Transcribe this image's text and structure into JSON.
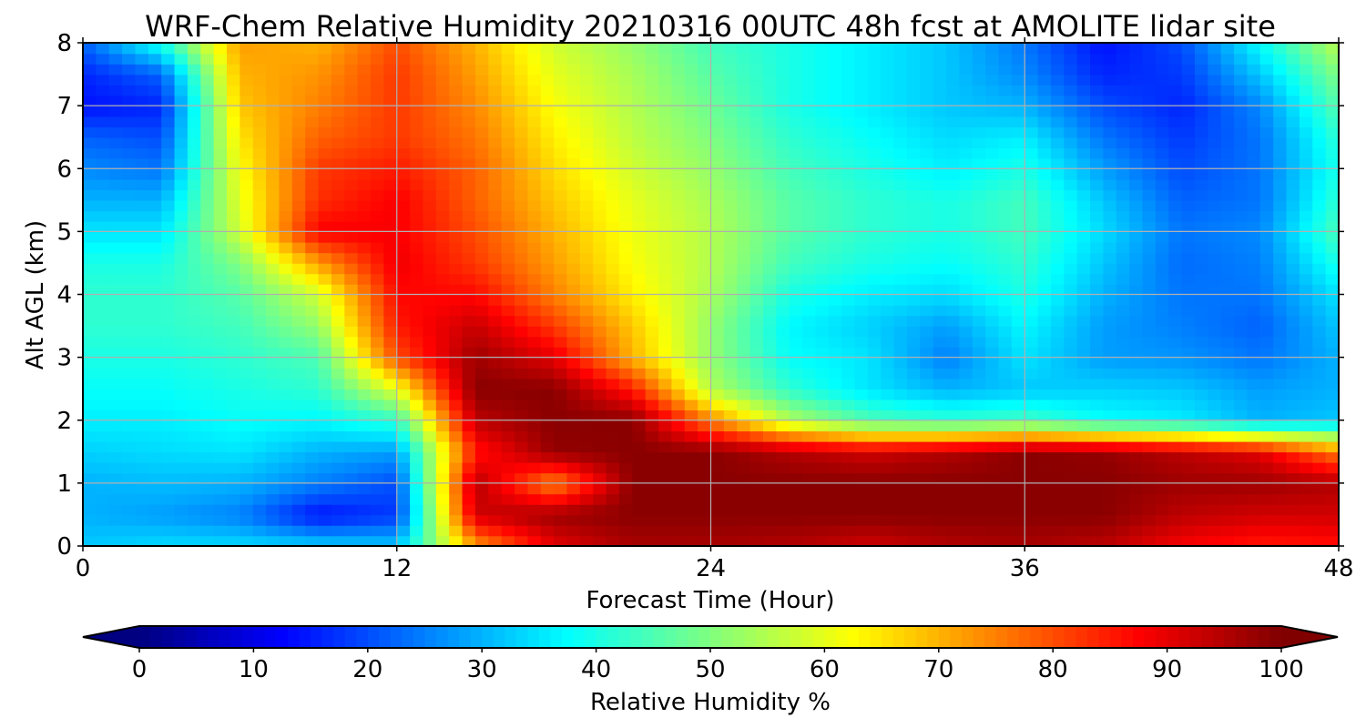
{
  "chart_data": {
    "type": "heatmap",
    "title": "WRF-Chem Relative Humidity 20210316 00UTC 48h fcst at AMOLITE lidar site",
    "xlabel": "Forecast Time (Hour)",
    "ylabel": "Alt AGL (km)",
    "xlim": [
      0,
      48
    ],
    "ylim": [
      0,
      8
    ],
    "xticks": [
      0,
      12,
      24,
      36,
      48
    ],
    "yticks": [
      0,
      1,
      2,
      3,
      4,
      5,
      6,
      7,
      8
    ],
    "grid": true,
    "colormap": "jet",
    "colorbar": {
      "label": "Relative Humidity %",
      "range": [
        0,
        100
      ],
      "ticks": [
        0,
        10,
        20,
        30,
        40,
        50,
        60,
        70,
        80,
        90,
        100
      ],
      "extend": "both",
      "orientation": "horizontal"
    },
    "x": [
      0,
      3,
      6,
      9,
      12,
      15,
      18,
      21,
      24,
      27,
      30,
      33,
      36,
      39,
      42,
      45,
      48
    ],
    "y": [
      0,
      0.5,
      1,
      1.5,
      2,
      2.5,
      3,
      3.5,
      4,
      4.5,
      5,
      5.5,
      6,
      6.5,
      7,
      7.5,
      8
    ],
    "z": [
      [
        32,
        34,
        34,
        33,
        32,
        72,
        90,
        96,
        96,
        95,
        92,
        95,
        96,
        94,
        88,
        85,
        86
      ],
      [
        30,
        28,
        25,
        14,
        18,
        92,
        97,
        99,
        99,
        99,
        99,
        99,
        99,
        99,
        94,
        92,
        92
      ],
      [
        30,
        31,
        30,
        25,
        20,
        95,
        74,
        99,
        99,
        99,
        99,
        99,
        99,
        99,
        97,
        97,
        95
      ],
      [
        33,
        34,
        35,
        30,
        28,
        85,
        98,
        99,
        99,
        95,
        92,
        95,
        99,
        98,
        94,
        90,
        75
      ],
      [
        36,
        36,
        38,
        37,
        42,
        94,
        99,
        99,
        75,
        55,
        45,
        42,
        44,
        38,
        36,
        30,
        32
      ],
      [
        38,
        38,
        40,
        42,
        60,
        99,
        99,
        85,
        55,
        42,
        35,
        30,
        32,
        33,
        32,
        28,
        30
      ],
      [
        40,
        40,
        42,
        45,
        80,
        97,
        90,
        70,
        52,
        38,
        35,
        25,
        35,
        28,
        27,
        24,
        30
      ],
      [
        42,
        42,
        44,
        52,
        85,
        93,
        82,
        68,
        52,
        37,
        33,
        28,
        37,
        28,
        25,
        22,
        32
      ],
      [
        42,
        42,
        46,
        58,
        87,
        87,
        75,
        64,
        54,
        40,
        36,
        34,
        40,
        30,
        24,
        24,
        35
      ],
      [
        40,
        40,
        50,
        72,
        89,
        82,
        72,
        62,
        55,
        44,
        40,
        38,
        42,
        32,
        23,
        25,
        40
      ],
      [
        35,
        35,
        58,
        88,
        88,
        80,
        70,
        61,
        55,
        46,
        42,
        40,
        44,
        34,
        24,
        26,
        45
      ],
      [
        30,
        30,
        60,
        83,
        88,
        78,
        68,
        60,
        54,
        46,
        42,
        40,
        44,
        32,
        22,
        24,
        42
      ],
      [
        26,
        24,
        62,
        82,
        85,
        78,
        66,
        58,
        52,
        44,
        40,
        36,
        40,
        28,
        20,
        24,
        40
      ],
      [
        22,
        20,
        65,
        78,
        82,
        76,
        64,
        56,
        50,
        42,
        38,
        34,
        36,
        24,
        18,
        24,
        42
      ],
      [
        14,
        16,
        68,
        75,
        82,
        74,
        62,
        55,
        48,
        40,
        36,
        32,
        30,
        20,
        16,
        26,
        46
      ],
      [
        16,
        22,
        70,
        73,
        82,
        72,
        60,
        54,
        46,
        40,
        36,
        32,
        26,
        16,
        18,
        32,
        50
      ],
      [
        22,
        40,
        72,
        70,
        80,
        70,
        58,
        52,
        44,
        40,
        36,
        32,
        24,
        14,
        20,
        38,
        56
      ]
    ]
  }
}
